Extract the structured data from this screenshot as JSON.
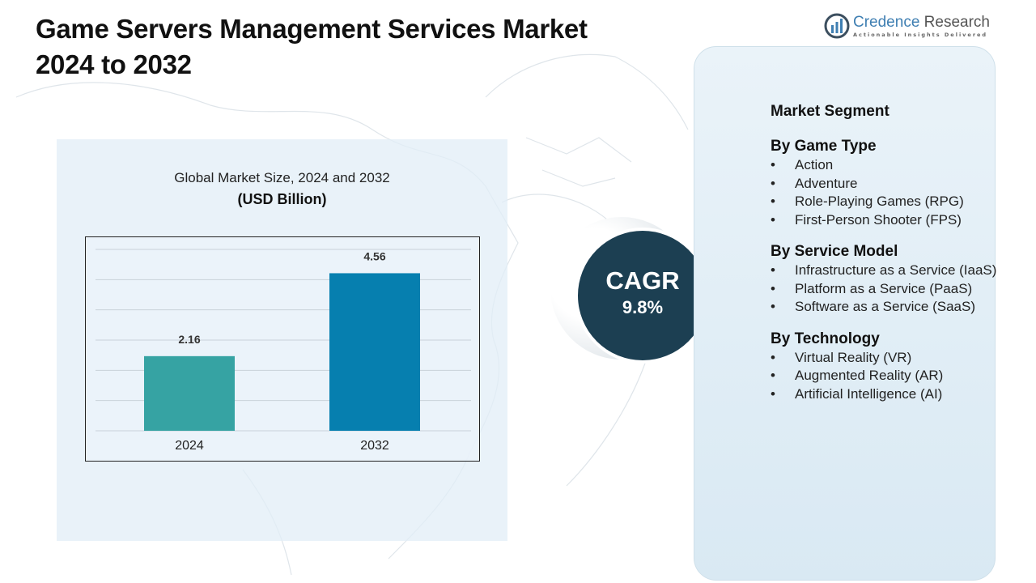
{
  "title": {
    "line1": "Game Servers Management Services Market",
    "line2": "2024 to 2032"
  },
  "logo": {
    "name_part1": "Credence",
    "name_part2": " Research",
    "tagline": "Actionable Insights Delivered"
  },
  "chart_data": {
    "type": "bar",
    "title": "Global Market Size, 2024 and 2032",
    "ylabel": "(USD Billion)",
    "categories": [
      "2024",
      "2032"
    ],
    "values": [
      2.16,
      4.56
    ],
    "data_labels": [
      "2.16",
      "4.56"
    ],
    "colors": [
      "#36a3a3",
      "#067faf"
    ],
    "ylim": [
      0,
      5.25
    ],
    "grid": true,
    "legend": "none"
  },
  "cagr": {
    "label": "CAGR",
    "value": "9.8%"
  },
  "segments": {
    "heading": "Market Segment",
    "groups": [
      {
        "title": "By Game Type",
        "items": [
          "Action",
          "Adventure",
          "Role-Playing Games (RPG)",
          "First-Person Shooter (FPS)"
        ]
      },
      {
        "title": "By Service Model",
        "items": [
          "Infrastructure as a Service (IaaS)",
          "Platform as a Service (PaaS)",
          "Software as a Service (SaaS)"
        ]
      },
      {
        "title": "By Technology",
        "items": [
          "Virtual Reality (VR)",
          "Augmented Reality (AR)",
          "Artificial Intelligence (AI)"
        ]
      }
    ]
  },
  "colors": {
    "cagr_circle": "#1c3f52",
    "panel": "#e2eef7",
    "brand": "#3f7fb2"
  }
}
